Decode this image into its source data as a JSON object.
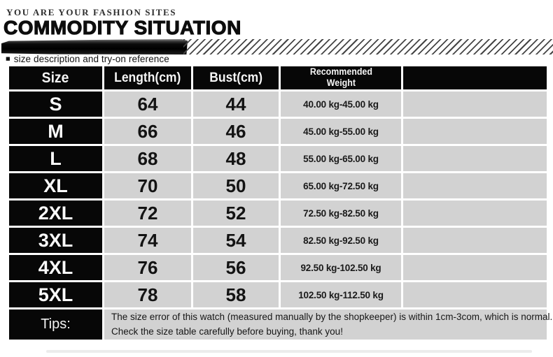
{
  "header": {
    "tagline": "YOU ARE YOUR FASHION SITES",
    "title": "COMMODITY SITUATION",
    "section_bullet": "■",
    "section_label": "size description and try-on reference"
  },
  "table": {
    "columns": [
      "Size",
      "Length(cm)",
      "Bust(cm)",
      "Recommended\nWeight",
      ""
    ],
    "rows": [
      {
        "size": "S",
        "length": "64",
        "bust": "44",
        "weight": "40.00 kg-45.00 kg"
      },
      {
        "size": "M",
        "length": "66",
        "bust": "46",
        "weight": "45.00 kg-55.00 kg"
      },
      {
        "size": "L",
        "length": "68",
        "bust": "48",
        "weight": "55.00 kg-65.00 kg"
      },
      {
        "size": "XL",
        "length": "70",
        "bust": "50",
        "weight": "65.00 kg-72.50 kg"
      },
      {
        "size": "2XL",
        "length": "72",
        "bust": "52",
        "weight": "72.50 kg-82.50 kg"
      },
      {
        "size": "3XL",
        "length": "74",
        "bust": "54",
        "weight": "82.50 kg-92.50 kg"
      },
      {
        "size": "4XL",
        "length": "76",
        "bust": "56",
        "weight": "92.50 kg-102.50 kg"
      },
      {
        "size": "5XL",
        "length": "78",
        "bust": "58",
        "weight": "102.50 kg-112.50 kg"
      }
    ],
    "tips": {
      "label": "Tips:",
      "line1": "The size error of this watch (measured manually by the shopkeeper) is within 1cm-3com, which is normal.",
      "line2": "Check the size table carefully before buying, thank you!"
    }
  },
  "colors": {
    "cell_gray": "#d2d2d2",
    "cell_black": "#070707",
    "stripe_color": "#454545"
  }
}
